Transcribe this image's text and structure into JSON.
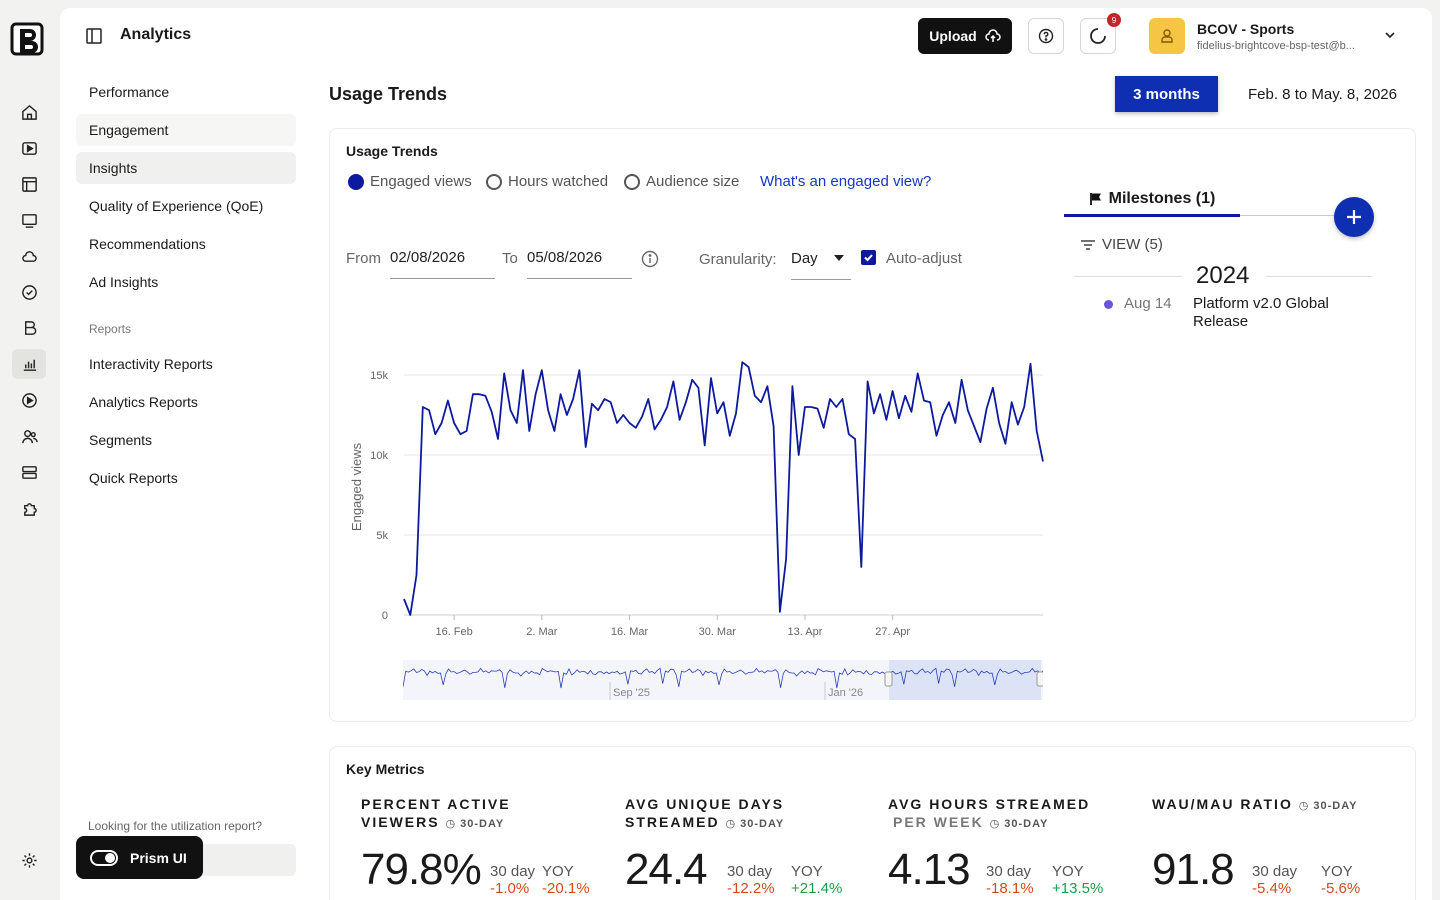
{
  "header": {
    "app_title": "Analytics",
    "upload_label": "Upload",
    "notification_count": "9",
    "account_name": "BCOV - Sports",
    "account_email": "fidelius-brightcove-bsp-test@b..."
  },
  "sidebar": {
    "items": [
      {
        "label": "Performance"
      },
      {
        "label": "Engagement"
      },
      {
        "label": "Insights"
      },
      {
        "label": "Quality of Experience (QoE)"
      },
      {
        "label": "Recommendations"
      },
      {
        "label": "Ad Insights"
      }
    ],
    "reports_section": "Reports",
    "report_items": [
      {
        "label": "Interactivity Reports"
      },
      {
        "label": "Analytics Reports"
      },
      {
        "label": "Segments"
      },
      {
        "label": "Quick Reports"
      }
    ],
    "util_text": "Looking for the utilization report?",
    "prism_label": "Prism UI"
  },
  "page": {
    "title": "Usage Trends",
    "range_button": "3 months",
    "range_text": "Feb. 8 to May. 8, 2026"
  },
  "usage_trends": {
    "title": "Usage Trends",
    "metrics": [
      {
        "label": "Engaged views",
        "selected": true
      },
      {
        "label": "Hours watched",
        "selected": false
      },
      {
        "label": "Audience size",
        "selected": false
      }
    ],
    "help_link": "What's an engaged view?",
    "from_label": "From",
    "from_value": "02/08/2026",
    "to_label": "To",
    "to_value": "05/08/2026",
    "granularity_label": "Granularity:",
    "granularity_value": "Day",
    "auto_adjust_label": "Auto-adjust"
  },
  "chart_data": {
    "type": "line",
    "ylabel": "Engaged views",
    "yticks": [
      "0",
      "5k",
      "10k",
      "15k"
    ],
    "ylim": [
      0,
      16000
    ],
    "xticks": [
      "16. Feb",
      "2. Mar",
      "16. Mar",
      "30. Mar",
      "13. Apr",
      "27. Apr"
    ],
    "navigator_labels": [
      "Sep '25",
      "Jan '26"
    ],
    "series": [
      {
        "values": [
          1000,
          0,
          2500,
          13000,
          12800,
          11300,
          12000,
          13400,
          12000,
          11300,
          11500,
          13800,
          13800,
          13700,
          12700,
          11000,
          15100,
          12800,
          12000,
          15300,
          11500,
          13800,
          15300,
          12800,
          11500,
          13800,
          12500,
          13500,
          15300,
          10500,
          13200,
          12800,
          13500,
          13300,
          12000,
          12500,
          12000,
          11700,
          12400,
          13500,
          11600,
          12200,
          13000,
          14600,
          12200,
          13300,
          14700,
          14200,
          10600,
          14800,
          12600,
          13300,
          11200,
          12600,
          15800,
          15500,
          13700,
          13300,
          14300,
          11800,
          200,
          3500,
          14300,
          10000,
          13000,
          13000,
          12900,
          11700,
          13500,
          13000,
          13500,
          11300,
          11000,
          3000,
          14600,
          12600,
          13800,
          12200,
          14000,
          12300,
          13700,
          12700,
          15100,
          13400,
          13300,
          11200,
          12500,
          13300,
          12000,
          14700,
          12800,
          11800,
          10800,
          12900,
          14200,
          12000,
          10700,
          13300,
          11900,
          13000,
          15700,
          11500,
          9600
        ]
      }
    ]
  },
  "milestones": {
    "tab_label": "Milestones (1)",
    "view_label": "VIEW (5)",
    "year": "2024",
    "items": [
      {
        "date": "Aug 14",
        "name": "Platform v2.0 Global Release"
      }
    ]
  },
  "key_metrics": {
    "title": "Key Metrics",
    "items": [
      {
        "title_line1": "PERCENT ACTIVE",
        "title_line2": "VIEWERS",
        "sub": "30-DAY",
        "value": "79.8%",
        "day_label": "30 day",
        "day_value": "-1.0%",
        "yoy_label": "YOY",
        "yoy_value": "-20.1%"
      },
      {
        "title_line1": "AVG UNIQUE DAYS",
        "title_line2": "STREAMED",
        "sub": "30-DAY",
        "value": "24.4",
        "day_label": "30 day",
        "day_value": "-12.2%",
        "yoy_label": "YOY",
        "yoy_value": "+21.4%"
      },
      {
        "title_line1": "AVG HOURS STREAMED",
        "title_line2": "PER WEEK",
        "sub": "30-DAY",
        "value": "4.13",
        "day_label": "30 day",
        "day_value": "-18.1%",
        "yoy_label": "YOY",
        "yoy_value": "+13.5%"
      },
      {
        "title_line1": "WAU/MAU RATIO",
        "title_line2": "",
        "sub": "30-DAY",
        "value": "91.8",
        "day_label": "30 day",
        "day_value": "-5.4%",
        "yoy_label": "YOY",
        "yoy_value": "-5.6%"
      }
    ]
  },
  "colors": {
    "accent": "#0f2fb3",
    "line": "#0e1a9e",
    "negative": "#d44b1f",
    "positive": "#1f9d49"
  }
}
